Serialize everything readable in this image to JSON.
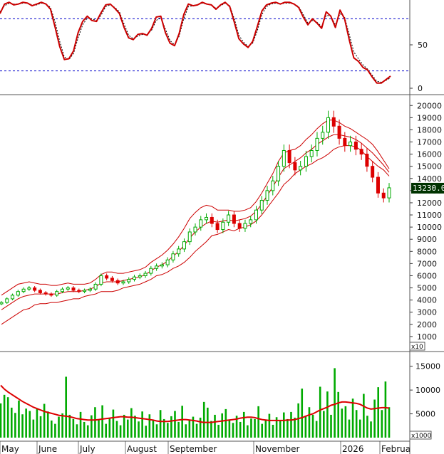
{
  "chart_data": [
    {
      "panel": "stochastic",
      "type": "line",
      "y_ticks": [
        "0",
        "50"
      ],
      "ylim": [
        0,
        100
      ],
      "reference_levels": [
        20,
        80
      ],
      "series": [
        {
          "values": [
            86,
            97,
            99,
            96,
            97,
            99,
            98,
            95,
            97,
            99,
            97,
            91,
            70,
            48,
            33,
            34,
            43,
            64,
            77,
            83,
            78,
            77,
            87,
            96,
            97,
            92,
            86,
            70,
            58,
            56,
            62,
            63,
            61,
            69,
            82,
            83,
            64,
            52,
            49,
            63,
            85,
            97,
            95,
            96,
            99,
            97,
            96,
            91,
            96,
            99,
            94,
            76,
            57,
            51,
            47,
            54,
            71,
            89,
            96,
            98,
            99,
            97,
            99,
            99,
            97,
            93,
            82,
            73,
            80,
            75,
            69,
            88,
            83,
            70,
            90,
            80,
            56,
            35,
            31,
            24,
            21,
            13,
            6,
            6,
            10,
            14
          ]
        },
        {
          "values": [
            88,
            95,
            98,
            97,
            97,
            98,
            98,
            96,
            96,
            98,
            97,
            93,
            76,
            54,
            36,
            33,
            40,
            58,
            73,
            81,
            80,
            78,
            84,
            94,
            96,
            93,
            88,
            74,
            61,
            57,
            60,
            62,
            62,
            67,
            78,
            82,
            68,
            55,
            50,
            60,
            80,
            94,
            95,
            96,
            98,
            97,
            96,
            92,
            95,
            98,
            95,
            80,
            61,
            53,
            48,
            52,
            66,
            85,
            94,
            97,
            98,
            97,
            98,
            98,
            97,
            94,
            85,
            75,
            78,
            76,
            71,
            84,
            83,
            73,
            86,
            82,
            62,
            42,
            34,
            27,
            22,
            15,
            8,
            7,
            9,
            12
          ]
        }
      ],
      "colors": {
        "fast_line": "#cc0000",
        "slow_line": "#000000",
        "reference": "#0000cc"
      }
    },
    {
      "panel": "price",
      "type": "candlestick",
      "y_ticks": [
        "1000",
        "2000",
        "3000",
        "4000",
        "5000",
        "6000",
        "7000",
        "8000",
        "9000",
        "10000",
        "11000",
        "12000",
        "13000",
        "14000",
        "15000",
        "16000",
        "17000",
        "18000",
        "19000",
        "20000"
      ],
      "y_unit_label": "x10",
      "last_price_label": "13230.0",
      "ylim": [
        0,
        20600
      ],
      "categories": [
        "May",
        "June",
        "July",
        "August",
        "September",
        "November",
        "2026",
        "Februa"
      ],
      "close": [
        3800,
        4100,
        4400,
        4700,
        4900,
        5000,
        4800,
        4600,
        4500,
        4400,
        4700,
        4900,
        5000,
        4800,
        4700,
        4800,
        4900,
        5300,
        6000,
        5800,
        5600,
        5400,
        5500,
        5700,
        5900,
        6000,
        6200,
        6600,
        6800,
        6900,
        7300,
        7800,
        8200,
        8800,
        9600,
        10000,
        10600,
        10800,
        10300,
        9800,
        10400,
        11000,
        10300,
        9900,
        10300,
        10600,
        11400,
        12200,
        13000,
        13800,
        15000,
        16300,
        15300,
        14700,
        15000,
        15800,
        16300,
        17300,
        17800,
        19000,
        18300,
        17300,
        16700,
        17000,
        16400,
        16000,
        15000,
        14100,
        12800,
        12400,
        13230
      ],
      "band_upper": [
        4400,
        4700,
        5000,
        5300,
        5400,
        5500,
        5400,
        5300,
        5300,
        5200,
        5200,
        5300,
        5400,
        5300,
        5300,
        5300,
        5400,
        5700,
        6100,
        6300,
        6300,
        6200,
        6200,
        6300,
        6400,
        6500,
        6700,
        7100,
        7400,
        7700,
        8100,
        8600,
        9200,
        9900,
        10700,
        11200,
        11600,
        11800,
        11700,
        11400,
        11400,
        11400,
        11300,
        11300,
        11400,
        11600,
        12100,
        12800,
        13600,
        14400,
        15400,
        16100,
        16300,
        16400,
        16700,
        17200,
        17600,
        18100,
        18500,
        18800,
        18800,
        18600,
        18300,
        18100,
        17800,
        17500,
        17200,
        16800,
        16200,
        15500,
        14800
      ],
      "band_middle": [
        3200,
        3500,
        3800,
        4100,
        4300,
        4400,
        4500,
        4500,
        4500,
        4500,
        4500,
        4600,
        4700,
        4700,
        4700,
        4800,
        4900,
        5100,
        5400,
        5500,
        5500,
        5500,
        5600,
        5700,
        5800,
        5900,
        6100,
        6400,
        6700,
        6900,
        7200,
        7600,
        8000,
        8500,
        9100,
        9600,
        10000,
        10300,
        10500,
        10400,
        10500,
        10600,
        10500,
        10600,
        10700,
        10900,
        11300,
        11900,
        12600,
        13300,
        14100,
        14800,
        15100,
        15400,
        15700,
        16100,
        16400,
        16800,
        17100,
        17400,
        17600,
        17600,
        17500,
        17400,
        17200,
        16900,
        16500,
        16100,
        15600,
        15100,
        14500
      ],
      "band_lower": [
        2000,
        2300,
        2600,
        2900,
        3200,
        3300,
        3600,
        3700,
        3700,
        3800,
        3800,
        3900,
        4000,
        4100,
        4100,
        4300,
        4400,
        4500,
        4700,
        4700,
        4700,
        4800,
        5000,
        5100,
        5200,
        5300,
        5500,
        5700,
        6000,
        6100,
        6300,
        6600,
        6800,
        7100,
        7500,
        8000,
        8400,
        8800,
        9300,
        9400,
        9600,
        9800,
        9700,
        9900,
        10000,
        10200,
        10500,
        11000,
        11600,
        12200,
        12800,
        13500,
        13900,
        14400,
        14700,
        15000,
        15200,
        15500,
        15700,
        16000,
        16400,
        16600,
        16700,
        16700,
        16600,
        16300,
        15800,
        15400,
        15000,
        14700,
        14200
      ],
      "colors": {
        "up": "#00aa00",
        "down": "#dd0000",
        "bands": "#cc0000",
        "last_price_tag": "#003300"
      }
    },
    {
      "panel": "volume",
      "type": "bar",
      "y_ticks": [
        "5000",
        "10000",
        "15000"
      ],
      "y_unit_label": "x1000",
      "ylim": [
        0,
        17500
      ],
      "values": [
        7200,
        9000,
        8500,
        6300,
        5200,
        7800,
        4900,
        6100,
        5600,
        3800,
        6000,
        4500,
        7100,
        5500,
        3600,
        2900,
        4400,
        5100,
        12800,
        4800,
        3900,
        2800,
        5400,
        3300,
        2600,
        4700,
        6400,
        3700,
        6800,
        2900,
        4100,
        5900,
        3500,
        2600,
        4800,
        3800,
        6200,
        4600,
        3400,
        5500,
        2500,
        4900,
        3700,
        2800,
        5800,
        3900,
        3100,
        4500,
        5600,
        3300,
        6700,
        2800,
        3600,
        4400,
        2900,
        4200,
        7500,
        6300,
        3500,
        4800,
        2700,
        5100,
        6000,
        3800,
        3100,
        4600,
        3300,
        5400,
        2600,
        4000,
        3900,
        6600,
        2900,
        3600,
        5000,
        2700,
        4300,
        3500,
        5300,
        3900,
        5400,
        4200,
        7200,
        10300,
        4600,
        6400,
        4800,
        3500,
        10700,
        5600,
        9700,
        4800,
        14600,
        9600,
        6100,
        6600,
        3800,
        8200,
        5800,
        3800,
        9200,
        4600,
        3400,
        8000,
        10600,
        5800,
        11800,
        6400
      ],
      "moving_average": [
        11000,
        10200,
        9600,
        9100,
        8600,
        8100,
        7600,
        7200,
        6800,
        6400,
        6100,
        5800,
        5500,
        5300,
        5100,
        4900,
        4700,
        4600,
        4500,
        4400,
        4200,
        4000,
        3900,
        3800,
        3700,
        3700,
        3700,
        3800,
        3900,
        4000,
        4100,
        4200,
        4300,
        4400,
        4400,
        4300,
        4300,
        4200,
        4100,
        4000,
        3900,
        3800,
        3700,
        3500,
        3400,
        3400,
        3400,
        3500,
        3600,
        3700,
        3800,
        3800,
        3700,
        3600,
        3500,
        3300,
        3200,
        3200,
        3200,
        3300,
        3400,
        3500,
        3600,
        3700,
        3800,
        3900,
        4100,
        4200,
        4300,
        4300,
        4200,
        4000,
        3800,
        3700,
        3600,
        3600,
        3600,
        3600,
        3600,
        3700,
        3700,
        3800,
        4000,
        4200,
        4500,
        4800,
        5000,
        5400,
        5800,
        6100,
        6400,
        6800,
        7000,
        7300,
        7500,
        7500,
        7400,
        7300,
        7200,
        7000,
        6600,
        6200,
        6000,
        6100,
        6200,
        6300,
        6300,
        6200
      ],
      "colors": {
        "bars": "#00aa00",
        "moving_average": "#dd0000"
      }
    }
  ]
}
